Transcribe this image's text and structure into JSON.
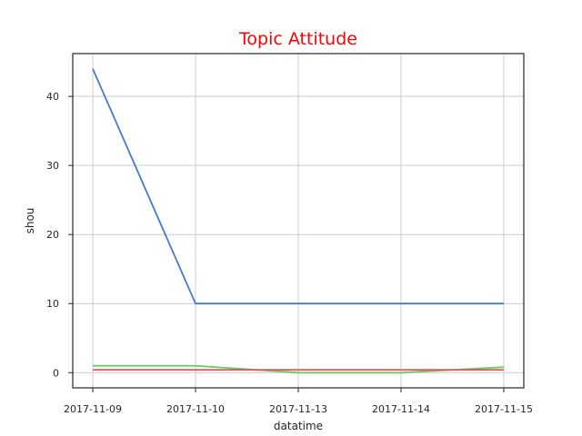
{
  "chart_data": {
    "type": "line",
    "title": "Topic Attitude",
    "title_color": "#ff0000",
    "xlabel": "datatime",
    "ylabel": "shou",
    "categories": [
      "2017-11-09",
      "2017-11-10",
      "2017-11-13",
      "2017-11-14",
      "2017-11-15"
    ],
    "ylim": [
      -2.2,
      46.2
    ],
    "yticks": [
      0,
      10,
      20,
      30,
      40
    ],
    "grid": true,
    "legend": "none",
    "series": [
      {
        "color": "#4878cf",
        "values": [
          44,
          10,
          10,
          10,
          10
        ]
      },
      {
        "color": "#6acc65",
        "values": [
          1,
          1,
          0,
          0,
          0.8
        ]
      },
      {
        "color": "#d65f5f",
        "values": [
          0.4,
          0.4,
          0.4,
          0.4,
          0.4
        ]
      }
    ]
  }
}
